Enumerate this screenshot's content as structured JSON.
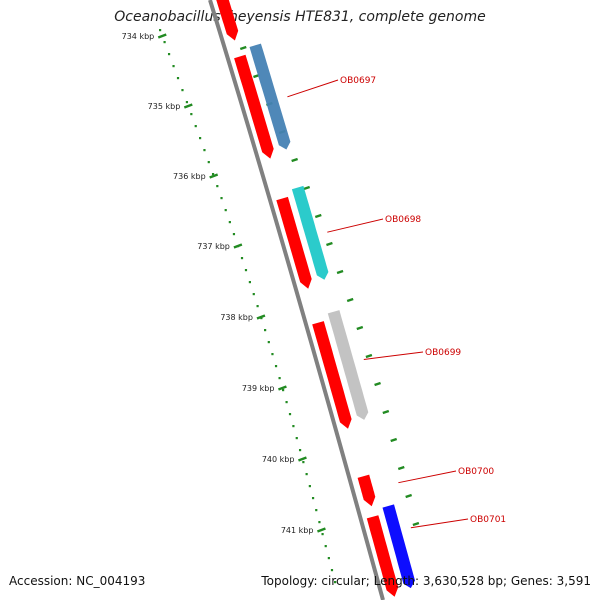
{
  "title": "Oceanobacillus iheyensis HTE831, complete genome",
  "footer": {
    "accession": "Accession: NC_004193",
    "summary": "Topology: circular; Length: 3,630,528 bp; Genes: 3,591"
  },
  "ruler": {
    "labels": [
      "734 kbp",
      "735 kbp",
      "736 kbp",
      "737 kbp",
      "738 kbp",
      "739 kbp",
      "740 kbp",
      "741 kbp"
    ]
  },
  "genes": [
    {
      "name": "OB0697",
      "color": "#4682b4"
    },
    {
      "name": "OB0698",
      "color": "#20c8c8"
    },
    {
      "name": "OB0699",
      "color": "#c0c0c0"
    },
    {
      "name": "OB0700",
      "color": "#ff0000"
    },
    {
      "name": "OB0701",
      "color": "#0000ff"
    }
  ],
  "colors": {
    "forward_strand": "#ff0000",
    "backbone": "#808080",
    "ruler": "#228b22",
    "label_line": "#cc0000"
  }
}
